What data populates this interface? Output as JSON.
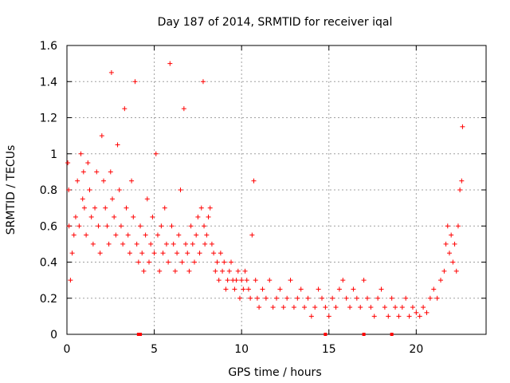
{
  "chart_data": {
    "type": "scatter",
    "title": "Day 187 of 2014, SRMTID for receiver iqal",
    "xlabel": "GPS time / hours",
    "ylabel": "SRMTID / TECUs",
    "xlim": [
      0,
      24
    ],
    "ylim": [
      0,
      1.6
    ],
    "xticks": [
      0,
      5,
      10,
      15,
      20
    ],
    "xtick_labels": [
      "0",
      "5",
      "10",
      "15",
      "20"
    ],
    "yticks": [
      0,
      0.2,
      0.4,
      0.6,
      0.8,
      1.0,
      1.2,
      1.4,
      1.6
    ],
    "ytick_labels": [
      "0",
      "0.2",
      "0.4",
      "0.6",
      "0.8",
      "1",
      "1.2",
      "1.4",
      "1.6"
    ],
    "grid": true,
    "marker": "+",
    "color": "#ff0000",
    "series": [
      {
        "name": "SRMTID",
        "x": [
          0.05,
          0.1,
          0.12,
          0.2,
          0.3,
          0.4,
          0.5,
          0.6,
          0.7,
          0.8,
          0.9,
          0.95,
          1.0,
          1.1,
          1.2,
          1.3,
          1.4,
          1.5,
          1.6,
          1.7,
          1.8,
          1.9,
          2.0,
          2.1,
          2.2,
          2.3,
          2.4,
          2.5,
          2.55,
          2.6,
          2.7,
          2.8,
          2.9,
          3.0,
          3.1,
          3.2,
          3.3,
          3.4,
          3.5,
          3.6,
          3.7,
          3.8,
          3.9,
          4.0,
          4.1,
          4.2,
          4.3,
          4.4,
          4.5,
          4.6,
          4.7,
          4.8,
          4.9,
          5.0,
          5.1,
          5.2,
          5.3,
          5.4,
          5.5,
          5.6,
          5.7,
          5.8,
          5.9,
          6.0,
          6.1,
          6.2,
          6.3,
          6.4,
          6.5,
          6.6,
          6.7,
          6.8,
          6.9,
          7.0,
          7.1,
          7.2,
          7.3,
          7.4,
          7.5,
          7.6,
          7.7,
          7.8,
          7.85,
          7.9,
          8.0,
          8.1,
          8.2,
          8.3,
          8.4,
          8.5,
          8.6,
          8.7,
          8.8,
          8.9,
          9.0,
          9.1,
          9.2,
          9.3,
          9.4,
          9.5,
          9.6,
          9.7,
          9.8,
          9.9,
          10.0,
          10.1,
          10.2,
          10.3,
          10.4,
          10.5,
          10.6,
          10.7,
          10.8,
          10.9,
          11.0,
          11.2,
          11.4,
          11.6,
          11.8,
          12.0,
          12.2,
          12.4,
          12.6,
          12.8,
          13.0,
          13.2,
          13.4,
          13.6,
          13.8,
          14.0,
          14.2,
          14.4,
          14.6,
          14.8,
          15.0,
          15.2,
          15.4,
          15.6,
          15.8,
          16.0,
          16.2,
          16.4,
          16.6,
          16.8,
          17.0,
          17.2,
          17.4,
          17.6,
          17.8,
          18.0,
          18.2,
          18.4,
          18.6,
          18.8,
          19.0,
          19.2,
          19.4,
          19.6,
          19.8,
          20.0,
          20.2,
          20.4,
          20.6,
          20.8,
          21.0,
          21.2,
          21.4,
          21.6,
          21.7,
          21.8,
          21.9,
          22.0,
          22.1,
          22.2,
          22.3,
          22.4,
          22.5,
          22.6,
          22.65
        ],
        "y": [
          0.95,
          0.8,
          0.6,
          0.3,
          0.45,
          0.55,
          0.65,
          0.85,
          0.6,
          1.0,
          0.75,
          0.9,
          0.7,
          0.55,
          0.95,
          0.8,
          0.65,
          0.5,
          0.7,
          0.9,
          0.6,
          0.45,
          1.1,
          0.85,
          0.7,
          0.6,
          0.5,
          0.9,
          1.45,
          0.75,
          0.65,
          0.55,
          1.05,
          0.8,
          0.6,
          0.5,
          1.25,
          0.7,
          0.55,
          0.45,
          0.85,
          0.65,
          1.4,
          0.5,
          0.4,
          0.6,
          0.45,
          0.35,
          0.55,
          0.75,
          0.4,
          0.5,
          0.65,
          0.45,
          1.0,
          0.55,
          0.35,
          0.6,
          0.45,
          0.7,
          0.5,
          0.4,
          1.5,
          0.6,
          0.5,
          0.35,
          0.45,
          0.55,
          0.8,
          0.4,
          1.25,
          0.5,
          0.45,
          0.35,
          0.6,
          0.5,
          0.4,
          0.55,
          0.65,
          0.45,
          0.7,
          1.4,
          0.6,
          0.5,
          0.55,
          0.65,
          0.7,
          0.5,
          0.45,
          0.35,
          0.4,
          0.3,
          0.45,
          0.35,
          0.4,
          0.25,
          0.3,
          0.35,
          0.4,
          0.3,
          0.25,
          0.3,
          0.35,
          0.2,
          0.3,
          0.25,
          0.35,
          0.3,
          0.25,
          0.2,
          0.55,
          0.85,
          0.3,
          0.2,
          0.15,
          0.25,
          0.2,
          0.3,
          0.15,
          0.2,
          0.25,
          0.15,
          0.2,
          0.3,
          0.15,
          0.2,
          0.25,
          0.15,
          0.2,
          0.1,
          0.15,
          0.25,
          0.2,
          0.15,
          0.1,
          0.2,
          0.15,
          0.25,
          0.3,
          0.2,
          0.15,
          0.25,
          0.2,
          0.15,
          0.3,
          0.2,
          0.15,
          0.1,
          0.2,
          0.25,
          0.15,
          0.1,
          0.2,
          0.15,
          0.1,
          0.15,
          0.2,
          0.1,
          0.15,
          0.12,
          0.1,
          0.15,
          0.12,
          0.2,
          0.25,
          0.2,
          0.3,
          0.35,
          0.5,
          0.6,
          0.45,
          0.55,
          0.4,
          0.5,
          0.35,
          0.6,
          0.8,
          0.85,
          1.15
        ]
      }
    ],
    "zero_markers_x": [
      4.1,
      4.2,
      14.8,
      17.0,
      18.6
    ]
  }
}
